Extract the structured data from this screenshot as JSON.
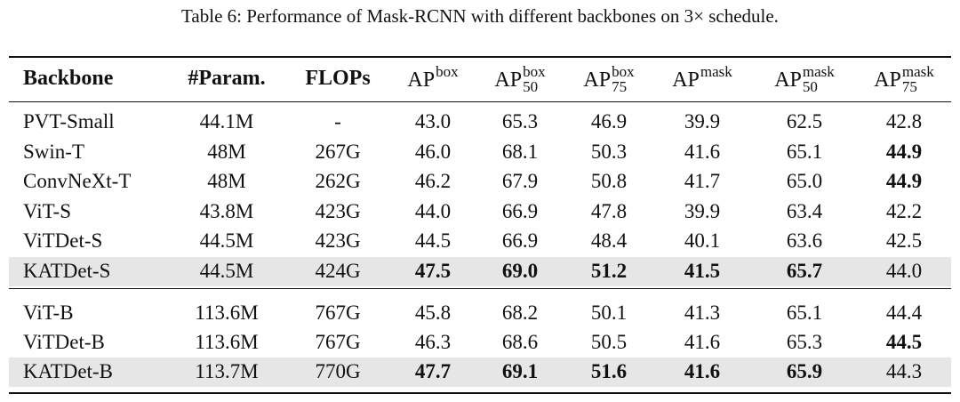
{
  "caption": "Table 6: Performance of Mask-RCNN with different backbones on 3× schedule.",
  "table": {
    "header": [
      {
        "text": "Backbone",
        "bold": true
      },
      {
        "text": "#Param.",
        "bold": true
      },
      {
        "text": "FLOPs",
        "bold": true
      },
      {
        "text": "AP",
        "sup": "box"
      },
      {
        "text": "AP",
        "sup": "box",
        "sub": "50"
      },
      {
        "text": "AP",
        "sup": "box",
        "sub": "75"
      },
      {
        "text": "AP",
        "sup": "mask"
      },
      {
        "text": "AP",
        "sup": "mask",
        "sub": "50"
      },
      {
        "text": "AP",
        "sup": "mask",
        "sub": "75"
      }
    ],
    "groups": [
      [
        {
          "cells": [
            "PVT-Small",
            "44.1M",
            "-",
            "43.0",
            "65.3",
            "46.9",
            "39.9",
            "62.5",
            "42.8"
          ]
        },
        {
          "cells": [
            "Swin-T",
            "48M",
            "267G",
            "46.0",
            "68.1",
            "50.3",
            "41.6",
            "65.1",
            {
              "text": "44.9",
              "bold": true
            }
          ]
        },
        {
          "cells": [
            "ConvNeXt-T",
            "48M",
            "262G",
            "46.2",
            "67.9",
            "50.8",
            "41.7",
            "65.0",
            {
              "text": "44.9",
              "bold": true
            }
          ]
        },
        {
          "cells": [
            "ViT-S",
            "43.8M",
            "423G",
            "44.0",
            "66.9",
            "47.8",
            "39.9",
            "63.4",
            "42.2"
          ]
        },
        {
          "cells": [
            "ViTDet-S",
            "44.5M",
            "423G",
            "44.5",
            "66.9",
            "48.4",
            "40.1",
            "63.6",
            "42.5"
          ]
        },
        {
          "highlight": true,
          "cells": [
            "KATDet-S",
            "44.5M",
            "424G",
            {
              "text": "47.5",
              "bold": true
            },
            {
              "text": "69.0",
              "bold": true
            },
            {
              "text": "51.2",
              "bold": true
            },
            {
              "text": "41.5",
              "bold": true
            },
            {
              "text": "65.7",
              "bold": true
            },
            "44.0"
          ]
        }
      ],
      [
        {
          "cells": [
            "ViT-B",
            "113.6M",
            "767G",
            "45.8",
            "68.2",
            "50.1",
            "41.3",
            "65.1",
            "44.4"
          ]
        },
        {
          "cells": [
            "ViTDet-B",
            "113.6M",
            "767G",
            "46.3",
            "68.6",
            "50.5",
            "41.6",
            "65.3",
            {
              "text": "44.5",
              "bold": true
            }
          ]
        },
        {
          "highlight": true,
          "cells": [
            "KATDet-B",
            "113.7M",
            "770G",
            {
              "text": "47.7",
              "bold": true
            },
            {
              "text": "69.1",
              "bold": true
            },
            {
              "text": "51.6",
              "bold": true
            },
            {
              "text": "41.6",
              "bold": true
            },
            {
              "text": "65.9",
              "bold": true
            },
            "44.3"
          ]
        }
      ]
    ]
  }
}
